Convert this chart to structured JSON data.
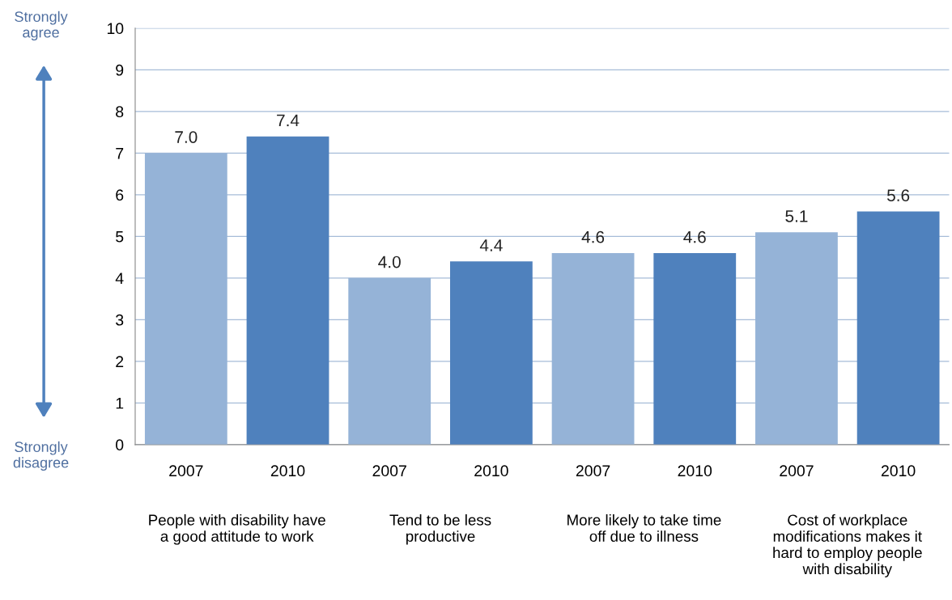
{
  "chart_data": {
    "type": "bar",
    "categories": [
      "2007",
      "2010",
      "2007",
      "2010",
      "2007",
      "2010",
      "2007",
      "2010"
    ],
    "values": [
      7.0,
      7.4,
      4.0,
      4.4,
      4.6,
      4.6,
      5.1,
      5.6
    ],
    "colors": [
      "#95b3d7",
      "#4f81bd",
      "#95b3d7",
      "#4f81bd",
      "#95b3d7",
      "#4f81bd",
      "#95b3d7",
      "#4f81bd"
    ],
    "ylim": [
      0,
      10
    ],
    "yticks": [
      0,
      1,
      2,
      3,
      4,
      5,
      6,
      7,
      8,
      9,
      10
    ],
    "grid": "y",
    "value_labels": [
      "7.0",
      "7.4",
      "4.0",
      "4.4",
      "4.6",
      "4.6",
      "5.1",
      "5.6"
    ],
    "annotations": [
      "Strongly\nagree",
      "Strongly\ndisagree",
      "People with disability have\na good attitude to work",
      "Tend to be less\nproductive",
      "More likely to take time\noff due to illness",
      "Cost of workplace\nmodifications makes it\nhard to employ people\nwith disability"
    ]
  }
}
